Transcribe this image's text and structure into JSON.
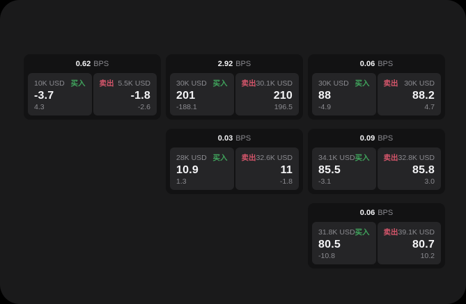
{
  "colors": {
    "page_bg": "#000000",
    "surface_bg": "#1a1a1b",
    "card_bg": "#121213",
    "panel_bg": "#252527",
    "text_primary": "#f4f4f6",
    "text_secondary": "#8b8b90",
    "buy_green": "#40a35c",
    "sell_red": "#d5566b"
  },
  "labels": {
    "bps_unit": "BPS",
    "buy": "买入",
    "sell": "卖出"
  },
  "cards": [
    {
      "bps": "0.62",
      "buy": {
        "size": "10K USD",
        "price": "-3.7",
        "delta": "4.3"
      },
      "sell": {
        "size": "5.5K USD",
        "price": "-1.8",
        "delta": "-2.6"
      }
    },
    {
      "bps": "2.92",
      "buy": {
        "size": "30K USD",
        "price": "201",
        "delta": "-188.1"
      },
      "sell": {
        "size": "30.1K USD",
        "price": "210",
        "delta": "196.5"
      }
    },
    {
      "bps": "0.06",
      "buy": {
        "size": "30K USD",
        "price": "88",
        "delta": "-4.9"
      },
      "sell": {
        "size": "30K USD",
        "price": "88.2",
        "delta": "4.7"
      }
    },
    {
      "bps": "0.03",
      "buy": {
        "size": "28K USD",
        "price": "10.9",
        "delta": "1.3"
      },
      "sell": {
        "size": "32.6K USD",
        "price": "11",
        "delta": "-1.8"
      }
    },
    {
      "bps": "0.09",
      "buy": {
        "size": "34.1K USD",
        "price": "85.5",
        "delta": "-3.1"
      },
      "sell": {
        "size": "32.8K USD",
        "price": "85.8",
        "delta": "3.0"
      }
    },
    {
      "bps": "0.06",
      "buy": {
        "size": "31.8K USD",
        "price": "80.5",
        "delta": "-10.8"
      },
      "sell": {
        "size": "39.1K USD",
        "price": "80.7",
        "delta": "10.2"
      }
    }
  ]
}
